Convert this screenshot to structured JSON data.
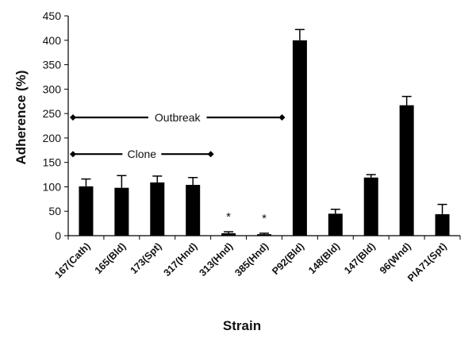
{
  "chart_data": {
    "type": "bar",
    "xlabel": "Strain",
    "ylabel": "Adherence (%)",
    "ylim": [
      0,
      450
    ],
    "yticks": [
      0,
      50,
      100,
      150,
      200,
      250,
      300,
      350,
      400,
      450
    ],
    "grid": false,
    "legend": "none",
    "bar_color": "#000000",
    "categories": [
      "167(Cath)",
      "165(Bld)",
      "173(Spt)",
      "317(Hnd)",
      "313(Hnd)",
      "385(Hnd)",
      "P92(Bld)",
      "148(Bld)",
      "147(Bld)",
      "96(Wnd)",
      "PIA71(Spt)"
    ],
    "values": [
      101,
      98,
      109,
      104,
      5,
      3,
      400,
      45,
      119,
      267,
      44
    ],
    "errors": [
      15,
      25,
      13,
      15,
      3,
      2,
      22,
      9,
      6,
      18,
      20
    ],
    "significance": [
      "",
      "",
      "",
      "",
      "*",
      "*",
      "",
      "",
      "",
      "",
      ""
    ],
    "annotations": [
      {
        "label": "Outbreak",
        "y": 242,
        "from_category": 0,
        "to_category": 5
      },
      {
        "label": "Clone",
        "y": 167,
        "from_category": 0,
        "to_category": 3
      }
    ]
  }
}
